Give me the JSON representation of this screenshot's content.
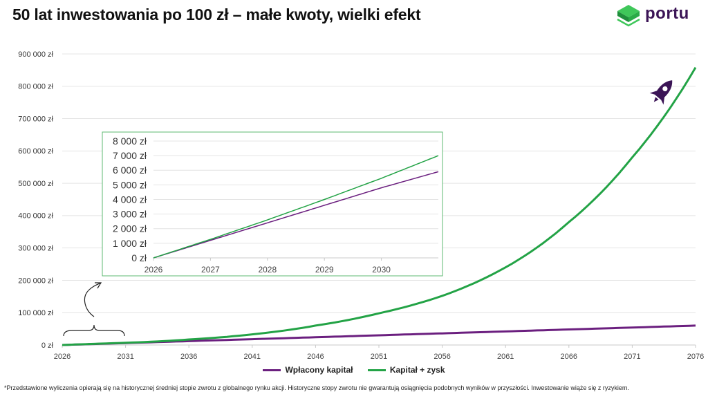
{
  "title": "50 lat inwestowania po 100 zł – małe kwoty, wielki efekt",
  "brand": {
    "name": "portu",
    "colors": {
      "green": "#23a346",
      "purple": "#3b1456"
    }
  },
  "icons": {
    "logo": "portu-logo-icon",
    "rocket": "rocket-icon",
    "arrow": "curved-arrow-icon",
    "brace": "curly-brace-icon"
  },
  "footnote": "*Przedstawione wyliczenia opierają się na historycznej średniej stopie zwrotu z globalnego rynku akcji. Historyczne stopy zwrotu nie gwarantują osiągnięcia podobnych wyników w przyszłości. Inwestowanie wiąże się z ryzykiem.",
  "chart_data": [
    {
      "type": "line",
      "grid": true,
      "legend_position": "bottom",
      "x": [
        2026,
        2031,
        2036,
        2041,
        2046,
        2051,
        2056,
        2061,
        2066,
        2071,
        2076
      ],
      "xlim": [
        2026,
        2076
      ],
      "ylim": [
        0,
        900000
      ],
      "xticks": [
        "2026",
        "2031",
        "2036",
        "2041",
        "2046",
        "2051",
        "2056",
        "2061",
        "2066",
        "2071",
        "2076"
      ],
      "yticks": [
        "0 zł",
        "100 000 zł",
        "200 000 zł",
        "300 000 zł",
        "400 000 zł",
        "500 000 zł",
        "600 000 zł",
        "700 000 zł",
        "800 000 zł",
        "900 000 zł"
      ],
      "series": [
        {
          "name": "Wpłacony kapitał",
          "color": "#6b1f7f",
          "values": [
            0,
            6000,
            12000,
            18000,
            24000,
            30000,
            36000,
            42000,
            48000,
            54000,
            60000
          ]
        },
        {
          "name": "Kapitał + zysk",
          "color": "#23a346",
          "values": [
            0,
            7000,
            17000,
            33000,
            60000,
            98000,
            152000,
            240000,
            380000,
            580000,
            858000
          ]
        }
      ]
    },
    {
      "type": "line",
      "grid": true,
      "x": [
        2026,
        2027,
        2028,
        2029,
        2030,
        2031
      ],
      "xlim": [
        2026,
        2031
      ],
      "ylim": [
        0,
        8000
      ],
      "xticks": [
        "2026",
        "2027",
        "2028",
        "2029",
        "2030"
      ],
      "yticks": [
        "0 zł",
        "1 000 zł",
        "2 000 zł",
        "3 000 zł",
        "4 000 zł",
        "5 000 zł",
        "6 000 zł",
        "7 000 zł",
        "8 000 zł"
      ],
      "series": [
        {
          "name": "Wpłacony kapitał",
          "color": "#6b1f7f",
          "values": [
            0,
            1200,
            2400,
            3600,
            4800,
            5900
          ]
        },
        {
          "name": "Kapitał + zysk",
          "color": "#23a346",
          "values": [
            0,
            1270,
            2600,
            4000,
            5450,
            7000
          ]
        }
      ]
    }
  ]
}
